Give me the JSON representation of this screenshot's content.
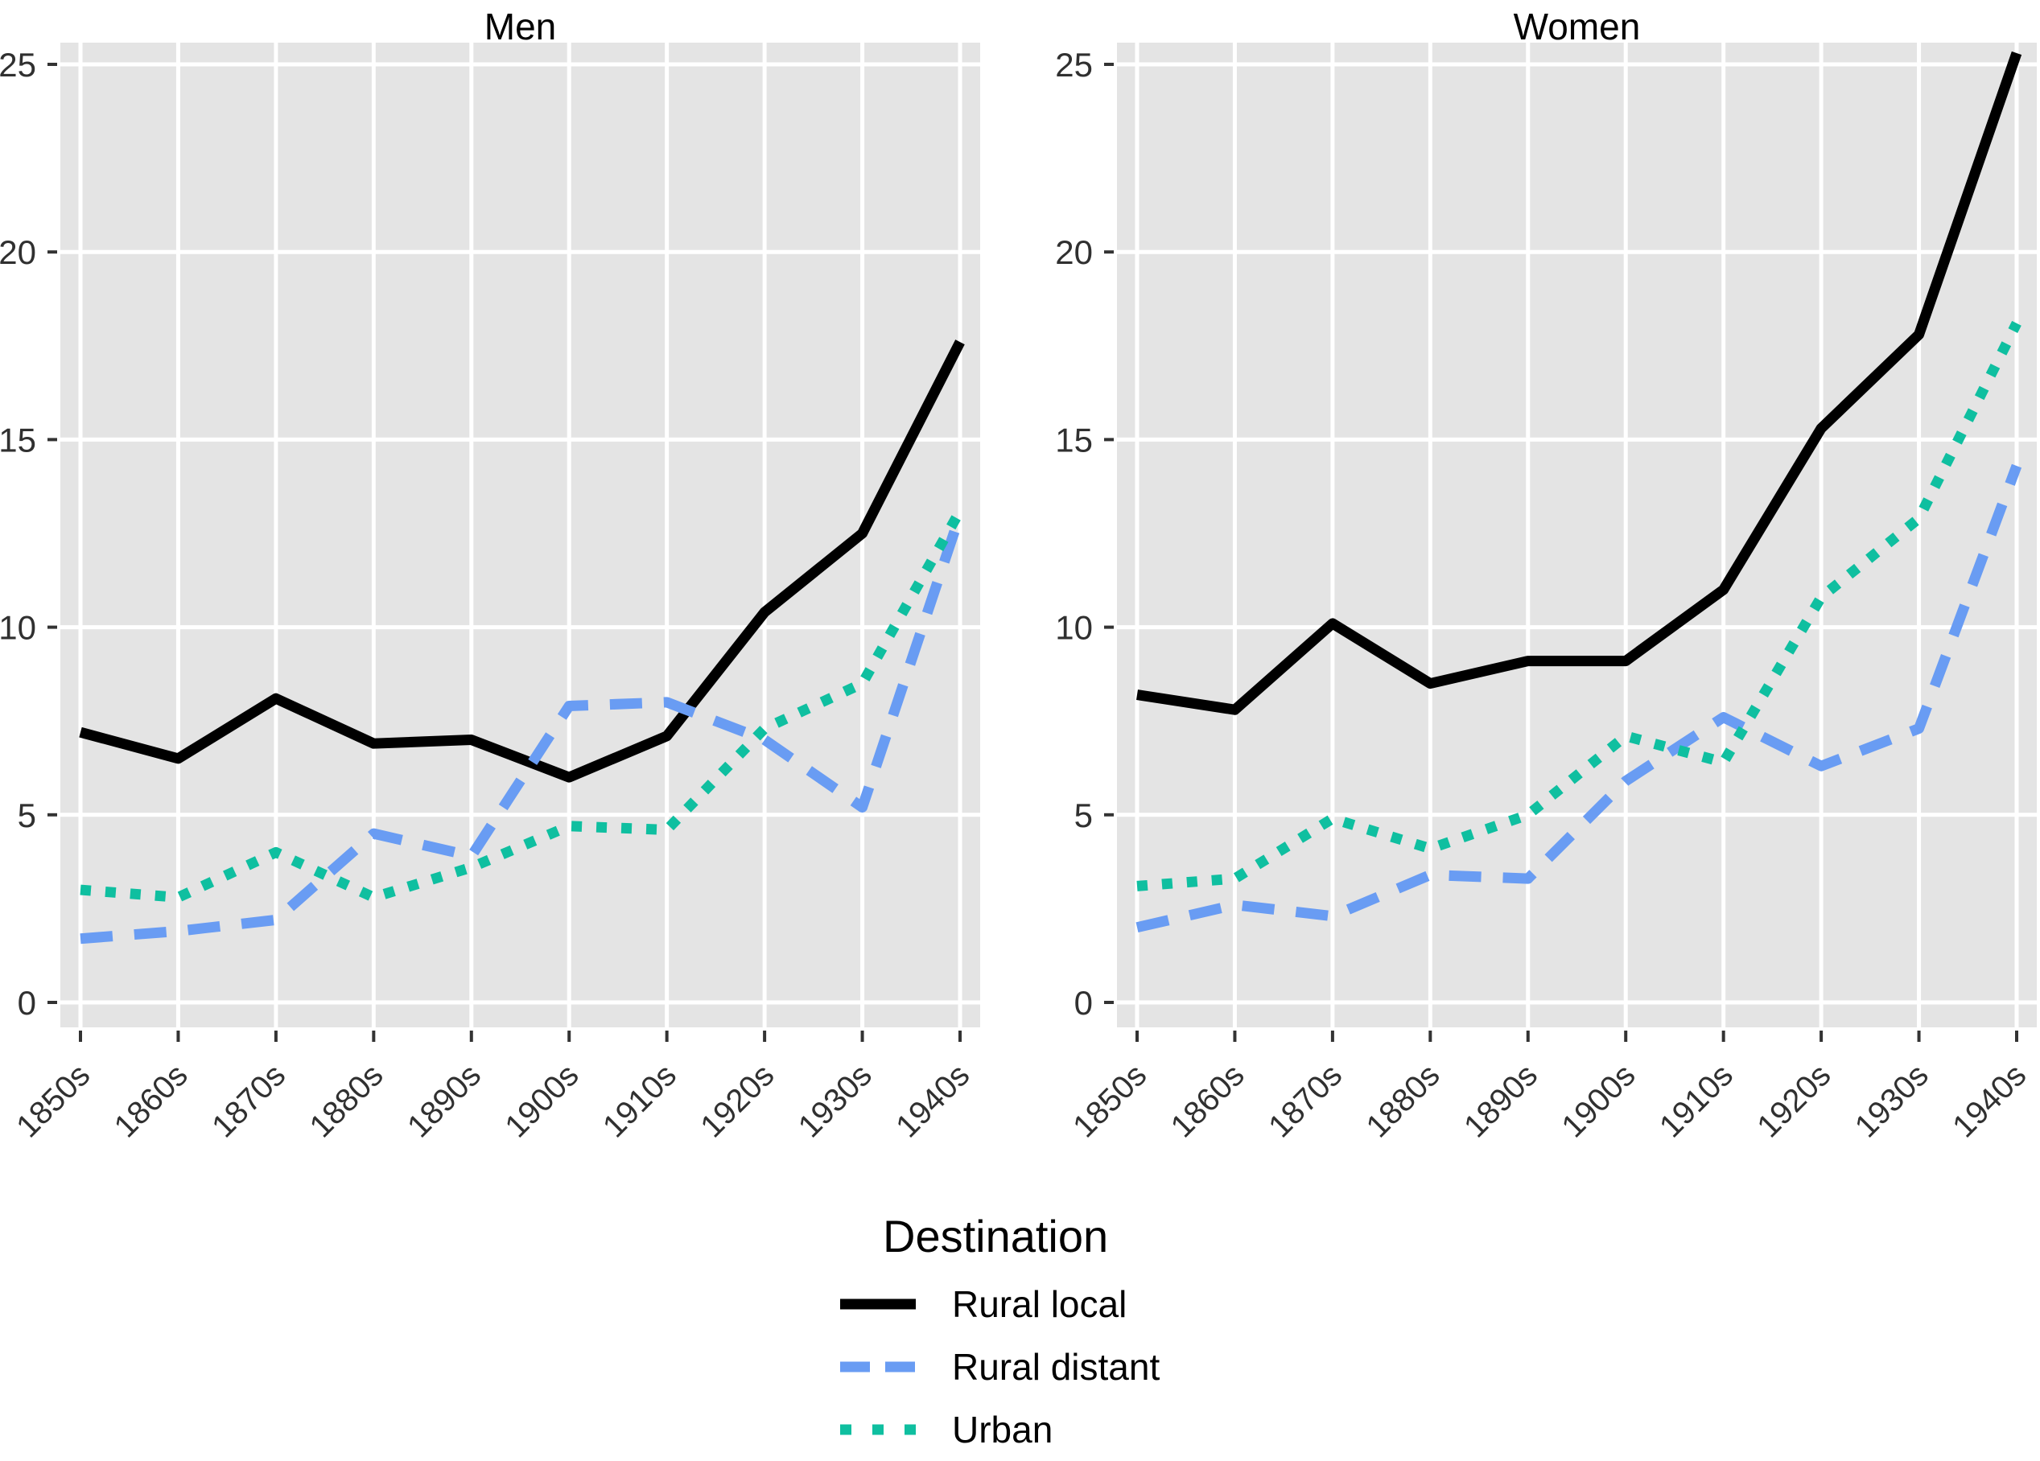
{
  "figure": {
    "background": "#ffffff",
    "panel_bg": "#e4e4e4",
    "grid_color": "#ffffff",
    "axis_text_color": "#303030",
    "tick_color": "#333333"
  },
  "series_styles": {
    "Rural local": {
      "color": "#000000",
      "dash": null,
      "key_dash": null
    },
    "Rural distant": {
      "color": "#699cf3",
      "dash": [
        40,
        27
      ],
      "key_dash": [
        37,
        19
      ]
    },
    "Urban": {
      "color": "#0fbfa0",
      "dash": [
        13,
        18
      ],
      "key_dash": [
        14,
        26
      ]
    }
  },
  "chart_data": [
    {
      "type": "line",
      "title": "Men",
      "categories": [
        "1850s",
        "1860s",
        "1870s",
        "1880s",
        "1890s",
        "1900s",
        "1910s",
        "1920s",
        "1930s",
        "1940s"
      ],
      "ylim": [
        0,
        25
      ],
      "yticks": [
        0,
        5,
        10,
        15,
        20,
        25
      ],
      "grid": true,
      "legend_position": "bottom",
      "series": [
        {
          "name": "Rural local",
          "values": [
            7.2,
            6.5,
            8.1,
            6.9,
            7.0,
            6.0,
            7.1,
            10.4,
            12.5,
            17.6
          ]
        },
        {
          "name": "Rural distant",
          "values": [
            1.7,
            1.9,
            2.2,
            4.5,
            3.9,
            7.9,
            8.0,
            7.0,
            5.2,
            13.0
          ]
        },
        {
          "name": "Urban",
          "values": [
            3.0,
            2.8,
            4.0,
            2.8,
            3.6,
            4.7,
            4.6,
            7.3,
            8.5,
            13.1
          ]
        }
      ]
    },
    {
      "type": "line",
      "title": "Women",
      "categories": [
        "1850s",
        "1860s",
        "1870s",
        "1880s",
        "1890s",
        "1900s",
        "1910s",
        "1920s",
        "1930s",
        "1940s"
      ],
      "ylim": [
        0,
        25
      ],
      "yticks": [
        0,
        5,
        10,
        15,
        20,
        25
      ],
      "grid": true,
      "legend_position": "bottom",
      "series": [
        {
          "name": "Rural local",
          "values": [
            8.2,
            7.8,
            10.1,
            8.5,
            9.1,
            9.1,
            11.0,
            15.3,
            17.8,
            25.3
          ]
        },
        {
          "name": "Rural distant",
          "values": [
            2.0,
            2.6,
            2.3,
            3.4,
            3.3,
            5.9,
            7.6,
            6.3,
            7.3,
            14.3
          ]
        },
        {
          "name": "Urban",
          "values": [
            3.1,
            3.3,
            4.9,
            4.1,
            5.0,
            7.1,
            6.4,
            10.8,
            12.9,
            18.1
          ]
        }
      ]
    }
  ],
  "legend": {
    "title": "Destination",
    "entries": [
      {
        "label": "Rural local"
      },
      {
        "label": "Rural distant"
      },
      {
        "label": "Urban"
      }
    ]
  }
}
